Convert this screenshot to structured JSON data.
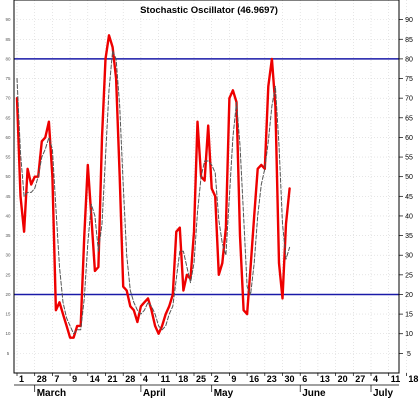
{
  "chart_data": {
    "type": "line",
    "title": "Stochastic Oscillator (46.9697)",
    "ylim": [
      0,
      95
    ],
    "yticks": [
      5,
      10,
      15,
      20,
      25,
      30,
      35,
      40,
      45,
      50,
      55,
      60,
      65,
      70,
      75,
      80,
      85,
      90
    ],
    "reference_lines": [
      20,
      80
    ],
    "grid": true,
    "x_tick_labels": [
      "1",
      "28",
      "7",
      "9",
      "14",
      "21",
      "28",
      "4",
      "11",
      "18",
      "25",
      "2",
      "9",
      "16",
      "23",
      "30",
      "6",
      "13",
      "20",
      "27",
      "4",
      "11",
      "18"
    ],
    "month_labels": [
      "March",
      "April",
      "May",
      "June",
      "July"
    ],
    "series": [
      {
        "color": "#ee0000",
        "style": "solid",
        "values": [
          70,
          45,
          36,
          52,
          48,
          50,
          50,
          59,
          60,
          64,
          50,
          16,
          18,
          15,
          12,
          9,
          9,
          12,
          12,
          35,
          53,
          40,
          26,
          27,
          60,
          80,
          86,
          83,
          75,
          50,
          22,
          21,
          17,
          16,
          13,
          17,
          18,
          19,
          16,
          12,
          10,
          12,
          15,
          17,
          20,
          36,
          37,
          21,
          25,
          24,
          36,
          64,
          50,
          49,
          63,
          47,
          45,
          25,
          28,
          37,
          70,
          72,
          69,
          35,
          16,
          15,
          27,
          40,
          52,
          53,
          52,
          73,
          80,
          68,
          28,
          19,
          38,
          47
        ]
      },
      {
        "color": "#555555",
        "style": "dashed",
        "values": [
          75,
          56,
          45,
          46,
          46,
          47,
          50,
          55,
          57,
          60,
          57,
          42,
          27,
          18,
          14,
          12,
          10,
          11,
          11,
          19,
          33,
          43,
          40,
          31,
          38,
          55,
          72,
          82,
          80,
          68,
          48,
          30,
          21,
          18,
          16,
          15,
          16,
          18,
          17,
          15,
          12,
          11,
          12,
          15,
          17,
          24,
          31,
          31,
          27,
          23,
          28,
          41,
          50,
          54,
          54,
          53,
          51,
          39,
          33,
          30,
          45,
          60,
          69,
          58,
          40,
          22,
          20,
          28,
          40,
          48,
          52,
          59,
          68,
          73,
          58,
          38,
          29,
          32
        ]
      }
    ]
  }
}
